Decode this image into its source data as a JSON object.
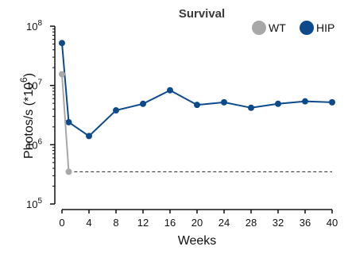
{
  "chart_data": {
    "type": "line",
    "title": "Survival",
    "xlabel": "Weeks",
    "ylabel_main": "Photos/s (*10",
    "ylabel_exp": "6",
    "ylabel_close": ")",
    "yscale": "log",
    "xlim": [
      0,
      40
    ],
    "ylim": [
      100000,
      100000000
    ],
    "x_ticks": [
      0,
      4,
      8,
      12,
      16,
      20,
      24,
      28,
      32,
      36,
      40
    ],
    "y_ticks": [
      {
        "value": 100000,
        "base": "10",
        "exp": "5"
      },
      {
        "value": 1000000,
        "base": "10",
        "exp": "6"
      },
      {
        "value": 10000000,
        "base": "10",
        "exp": "7"
      },
      {
        "value": 100000000,
        "base": "10",
        "exp": "8"
      }
    ],
    "threshold": {
      "y": 350000,
      "style": "dashed"
    },
    "legend_position": "top-right",
    "series": [
      {
        "name": "WT",
        "color": "#a8a8a8",
        "x": [
          0,
          1
        ],
        "y": [
          15500000,
          350000
        ]
      },
      {
        "name": "HIP",
        "color": "#0d4a8c",
        "x": [
          0,
          1,
          4,
          8,
          12,
          16,
          20,
          24,
          28,
          32,
          36,
          40
        ],
        "y": [
          52000000,
          2400000,
          1400000,
          3800000,
          4900000,
          8300000,
          4700000,
          5200000,
          4200000,
          4900000,
          5400000,
          5200000
        ]
      }
    ]
  }
}
